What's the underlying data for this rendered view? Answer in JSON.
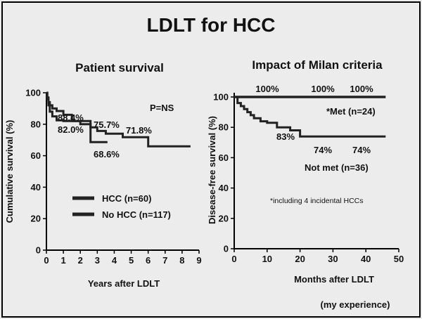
{
  "page": {
    "title": "LDLT for HCC",
    "footnote": "(my experience)"
  },
  "colors": {
    "background": "#ececec",
    "ink": "#111111",
    "border": "#000000"
  },
  "chart_data": [
    {
      "type": "line",
      "title": "Patient survival",
      "xlabel": "Years after LDLT",
      "ylabel": "Cumulative survival (%)",
      "xlim": [
        0,
        9
      ],
      "ylim": [
        0,
        100
      ],
      "xticks": [
        "0",
        "1",
        "2",
        "3",
        "4",
        "5",
        "6",
        "7",
        "8",
        "9"
      ],
      "yticks": [
        "0",
        "20",
        "40",
        "60",
        "80",
        "100"
      ],
      "annotation": "P=NS",
      "legend": [
        {
          "label": "HCC (n=60)"
        },
        {
          "label": "No HCC (n=117)"
        }
      ],
      "data_labels": [
        "88.4%",
        "82.0%",
        "75.7%",
        "71.8%",
        "68.6%"
      ],
      "series": [
        {
          "x": [
            0,
            0.05,
            0.05,
            0.12,
            0.12,
            0.2,
            0.2,
            0.35,
            0.35,
            0.6,
            0.6,
            1.0,
            1.0,
            1.5,
            1.5,
            2.0,
            2.0,
            2.6,
            2.6,
            3.6
          ],
          "y": [
            100,
            100,
            97,
            97,
            94,
            94,
            92,
            92,
            90,
            90,
            88.4,
            88.4,
            86,
            86,
            82,
            82,
            80,
            80,
            68.6,
            68.6
          ]
        },
        {
          "x": [
            0,
            0.05,
            0.05,
            0.12,
            0.12,
            0.2,
            0.2,
            0.35,
            0.35,
            0.6,
            0.6,
            1.0,
            1.0,
            2.6,
            2.6,
            3.0,
            3.0,
            3.5,
            3.5,
            4.5,
            4.5,
            6.0,
            6.0,
            8.5
          ],
          "y": [
            100,
            100,
            96,
            96,
            92,
            92,
            88,
            88,
            85,
            85,
            82.5,
            82.5,
            82,
            82,
            78,
            78,
            75.7,
            75.7,
            74,
            74,
            71.8,
            71.8,
            66,
            66
          ]
        }
      ]
    },
    {
      "type": "line",
      "title": "Impact of Milan criteria",
      "xlabel": "Months after LDLT",
      "ylabel": "Disease-free survival (%)",
      "xlim": [
        0,
        50
      ],
      "ylim": [
        0,
        100
      ],
      "xticks": [
        "0",
        "10",
        "20",
        "30",
        "40",
        "50"
      ],
      "yticks": [
        "0",
        "20",
        "40",
        "60",
        "80",
        "100"
      ],
      "top_labels": [
        "100%",
        "100%",
        "100%"
      ],
      "data_labels": [
        "83%",
        "74%",
        "74%"
      ],
      "series_labels": [
        "*Met (n=24)",
        "Not met (n=36)"
      ],
      "note": "*including 4 incidental HCCs",
      "series": [
        {
          "x": [
            0,
            46
          ],
          "y": [
            100,
            100
          ]
        },
        {
          "x": [
            0,
            1,
            1,
            2,
            2,
            3,
            3,
            4,
            4,
            5,
            5,
            6,
            6,
            8,
            8,
            10,
            10,
            13,
            13,
            17,
            17,
            20,
            20,
            46
          ],
          "y": [
            100,
            100,
            96,
            96,
            94,
            94,
            92,
            92,
            90,
            90,
            88,
            88,
            86,
            86,
            84,
            84,
            83,
            83,
            80,
            80,
            78,
            78,
            74,
            74
          ]
        }
      ]
    }
  ]
}
